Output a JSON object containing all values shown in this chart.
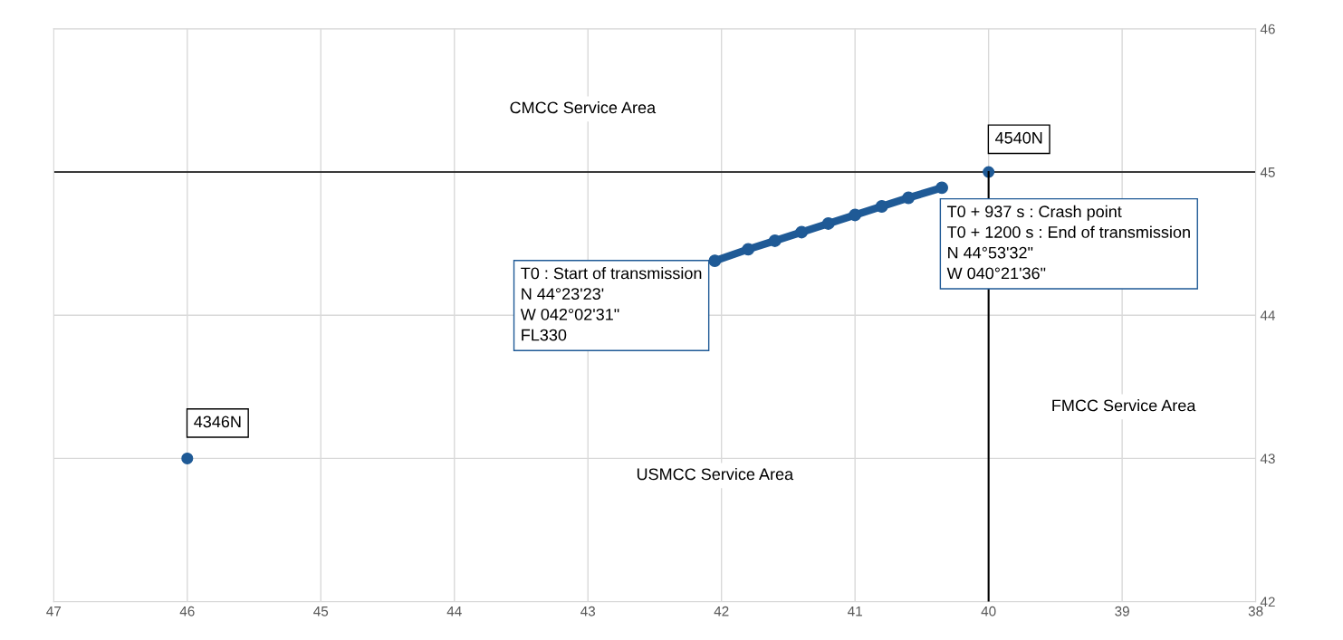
{
  "chart_data": {
    "type": "scatter",
    "xlim": [
      47,
      38
    ],
    "xticks": [
      47,
      46,
      45,
      44,
      43,
      42,
      41,
      40,
      39,
      38
    ],
    "ylim": [
      42,
      46
    ],
    "yticks": [
      42,
      43,
      44,
      45,
      46
    ],
    "grid": true,
    "marker": "circle",
    "series": [
      {
        "color": "#1f5a96",
        "x": [
          46,
          40
        ],
        "values": [
          43,
          45
        ]
      },
      {
        "type": "line",
        "color": "#1f5a96",
        "x": [
          42.05,
          41.8,
          41.6,
          41.4,
          41.2,
          41.0,
          40.8,
          40.6,
          40.35
        ],
        "values": [
          44.38,
          44.46,
          44.52,
          44.58,
          44.64,
          44.7,
          44.76,
          44.82,
          44.89
        ]
      },
      {
        "type": "line",
        "color": "#000000",
        "marker": "none",
        "x": [
          40,
          40
        ],
        "values": [
          42,
          45
        ]
      }
    ],
    "ref_lines": [
      {
        "axis": "y",
        "value": 45,
        "color": "#000000"
      }
    ],
    "annotations": [
      {
        "text": "4346N",
        "x": 46,
        "y": 43
      },
      {
        "text": "4540N",
        "x": 40,
        "y": 45
      },
      {
        "text": "T0 : Start of transmission\nN 44°23'23'\nW 042°02'31\"\nFL330",
        "x": 42.05,
        "y": 44.38
      },
      {
        "text": "T0 + 937 s : Crash point\nT0 + 1200 s : End of transmission\nN 44°53'32\"\nW 040°21'36\"",
        "x": 40.35,
        "y": 44.89
      },
      "CMCC Service Area",
      "USMCC Service Area",
      "FMCC Service Area"
    ]
  }
}
